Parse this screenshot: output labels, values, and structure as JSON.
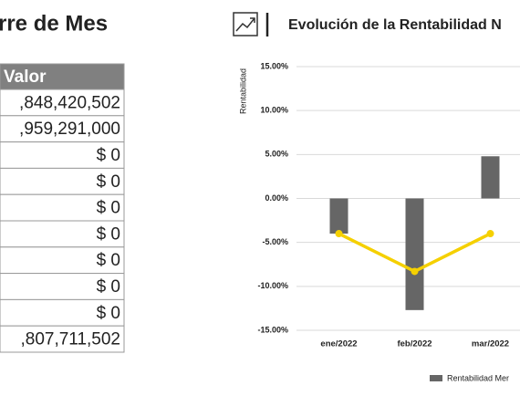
{
  "table": {
    "title": "rre de Mes",
    "header": "Valor",
    "rows": [
      ",848,420,502",
      ",959,291,000",
      "$ 0",
      "$ 0",
      "$ 0",
      "$ 0",
      "$ 0",
      "$ 0",
      "$ 0",
      ",807,711,502"
    ]
  },
  "chart_data": {
    "type": "bar-line",
    "title": "Evolución de la Rentabilidad N",
    "y_label": "Rentabilidad",
    "categories": [
      "ene/2022",
      "feb/2022",
      "mar/2022"
    ],
    "series": [
      {
        "name": "Rentabilidad Mer",
        "type": "bar",
        "color": "#666666",
        "values": [
          -4.0,
          -12.7,
          4.8
        ]
      },
      {
        "type": "line",
        "color": "#f5d000",
        "values": [
          -4.0,
          -8.3,
          -4.0
        ]
      }
    ],
    "ylim": [
      -15,
      15
    ],
    "yticks": [
      {
        "value": -15,
        "label": "-15.00%"
      },
      {
        "value": -10,
        "label": "-10.00%"
      },
      {
        "value": -5,
        "label": "-5.00%"
      },
      {
        "value": 0,
        "label": "0.00%"
      },
      {
        "value": 5,
        "label": "5.00%"
      },
      {
        "value": 10,
        "label": "10.00%"
      },
      {
        "value": 15,
        "label": "15.00%"
      }
    ],
    "grid": true
  }
}
